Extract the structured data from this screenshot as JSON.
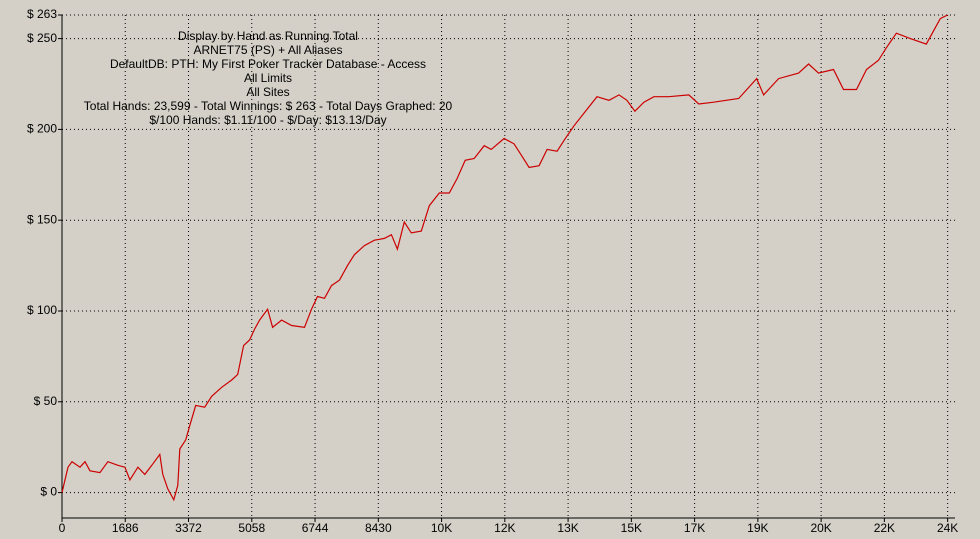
{
  "chart_data": {
    "type": "line",
    "annotations": [
      "Display by Hand as Running Total",
      "ARNET75 (PS) + All Aliases",
      "DefaultDB: PTH: My First Poker Tracker Database - Access",
      "All Limits",
      "All Sites",
      "Total Hands: 23,599 - Total Winnings: $ 263 - Total Days Graphed: 20",
      "$/100 Hands: $1.11/100 - $/Day: $13.13/Day"
    ],
    "xlim": [
      0,
      23800
    ],
    "ylim": [
      -14,
      263
    ],
    "xticks": [
      0,
      1686,
      3372,
      5058,
      6744,
      8430,
      {
        "value": 10116,
        "label": "10K"
      },
      {
        "value": 11802,
        "label": "12K"
      },
      {
        "value": 13488,
        "label": "13K"
      },
      {
        "value": 15174,
        "label": "15K"
      },
      {
        "value": 16860,
        "label": "17K"
      },
      {
        "value": 18546,
        "label": "19K"
      },
      {
        "value": 20232,
        "label": "20K"
      },
      {
        "value": 21918,
        "label": "22K"
      },
      {
        "value": 23604,
        "label": "24K"
      }
    ],
    "yticks": [
      {
        "value": 0,
        "label": "$ 0"
      },
      {
        "value": 50,
        "label": "$ 50"
      },
      {
        "value": 100,
        "label": "$ 100"
      },
      {
        "value": 150,
        "label": "$ 150"
      },
      {
        "value": 200,
        "label": "$ 200"
      },
      {
        "value": 250,
        "label": "$ 250"
      },
      {
        "value": 263,
        "label": "$ 263"
      }
    ],
    "grid": true,
    "series": [
      {
        "color": "#cc0000",
        "x": [
          0,
          80,
          160,
          266,
          479,
          612,
          745,
          1011,
          1224,
          1490,
          1676,
          1809,
          2022,
          2208,
          2394,
          2607,
          2687,
          2820,
          2979,
          3086,
          3139,
          3298,
          3405,
          3564,
          3804,
          3990,
          4256,
          4522,
          4682,
          4841,
          5001,
          5134,
          5267,
          5480,
          5613,
          5852,
          6118,
          6464,
          6650,
          6810,
          6996,
          7182,
          7395,
          7608,
          7794,
          8060,
          8326,
          8592,
          8778,
          8938,
          9124,
          9310,
          9576,
          9789,
          10055,
          10321,
          10534,
          10747,
          10986,
          11252,
          11438,
          11784,
          12050,
          12237,
          12450,
          12716,
          12929,
          13195,
          13381,
          13647,
          13913,
          14258,
          14578,
          14844,
          15056,
          15269,
          15508,
          15774,
          16173,
          16705,
          16971,
          17370,
          18035,
          18514,
          18700,
          19099,
          19631,
          19897,
          20163,
          20562,
          20828,
          21174,
          21440,
          21759,
          21972,
          22238,
          22610,
          23036,
          23222,
          23409,
          23599
        ],
        "values": [
          0,
          7,
          14,
          17,
          14,
          17,
          12,
          11,
          17,
          15,
          14,
          7,
          14,
          10,
          15,
          21,
          10,
          2,
          -4,
          4,
          24,
          29,
          37,
          48,
          47,
          53,
          58,
          62,
          65,
          81,
          84,
          90,
          95,
          101,
          91,
          95,
          92,
          91,
          101,
          108,
          107,
          114,
          117,
          125,
          131,
          136,
          139,
          140,
          142,
          134,
          149,
          143,
          144,
          158,
          165,
          165,
          173,
          183,
          184,
          191,
          189,
          195,
          192,
          186,
          179,
          180,
          189,
          188,
          194,
          202,
          209,
          218,
          216,
          219,
          216,
          210,
          215,
          218,
          218,
          219,
          214,
          215,
          217,
          228,
          219,
          228,
          231,
          236,
          231,
          233,
          222,
          222,
          233,
          238,
          245,
          253,
          250,
          247,
          254,
          261,
          263
        ]
      }
    ]
  }
}
